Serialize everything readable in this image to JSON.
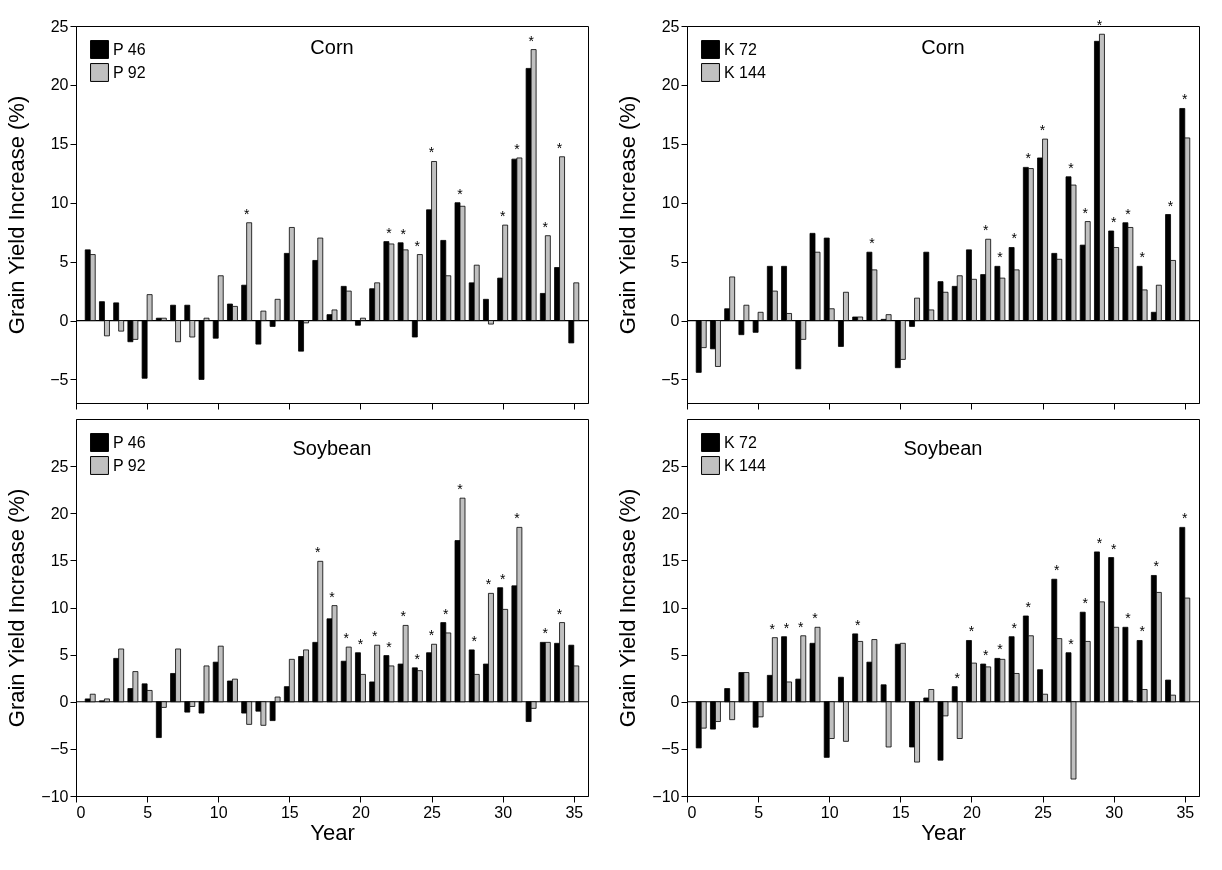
{
  "chart_data": [
    {
      "type": "bar",
      "title": "Corn",
      "ylabel": "Grain Yield Increase (%)",
      "x": [
        1,
        2,
        3,
        4,
        5,
        6,
        7,
        8,
        9,
        10,
        11,
        12,
        13,
        14,
        15,
        16,
        17,
        18,
        19,
        20,
        21,
        22,
        23,
        24,
        25,
        26,
        27,
        28,
        29,
        30,
        31,
        32,
        33,
        34,
        35
      ],
      "xlim": [
        0,
        36
      ],
      "xticks": [
        0,
        5,
        10,
        15,
        20,
        25,
        30,
        35
      ],
      "ylim": [
        -7,
        25
      ],
      "yticks": [
        -5,
        0,
        5,
        10,
        15,
        20,
        25
      ],
      "tick_labels": "y",
      "legend": "top left",
      "series": [
        {
          "name": "P 46",
          "color": "#000000",
          "values": [
            6.0,
            1.6,
            1.5,
            -1.8,
            -4.9,
            0.2,
            1.3,
            1.3,
            -5.0,
            -1.5,
            1.4,
            3.0,
            -2.0,
            -0.5,
            5.7,
            -2.6,
            5.1,
            0.5,
            2.9,
            -0.4,
            2.7,
            6.7,
            6.6,
            -1.4,
            9.4,
            6.8,
            10.0,
            3.2,
            1.8,
            3.6,
            13.7,
            21.4,
            2.3,
            4.5,
            -1.9
          ]
        },
        {
          "name": "P 92",
          "color": "#c0c0c0",
          "values": [
            5.6,
            -1.3,
            -0.9,
            -1.6,
            2.2,
            0.2,
            -1.8,
            -1.4,
            0.2,
            3.8,
            1.2,
            8.3,
            0.8,
            1.8,
            7.9,
            -0.2,
            7.0,
            0.9,
            2.5,
            0.2,
            3.2,
            6.5,
            6.0,
            5.6,
            13.5,
            3.8,
            9.7,
            4.7,
            -0.3,
            8.1,
            13.8,
            23.0,
            7.2,
            13.9,
            3.2
          ]
        }
      ],
      "ref_lines": [
        {
          "axis": "y",
          "value": 0
        }
      ],
      "annotations": [
        {
          "text": "*",
          "x": 12,
          "y": 8.3
        },
        {
          "text": "*",
          "x": 22,
          "y": 6.7
        },
        {
          "text": "*",
          "x": 23,
          "y": 6.6
        },
        {
          "text": "*",
          "x": 24,
          "y": 5.6
        },
        {
          "text": "*",
          "x": 25,
          "y": 13.5
        },
        {
          "text": "*",
          "x": 27,
          "y": 10.0
        },
        {
          "text": "*",
          "x": 30,
          "y": 8.1
        },
        {
          "text": "*",
          "x": 31,
          "y": 13.8
        },
        {
          "text": "*",
          "x": 32,
          "y": 23.0
        },
        {
          "text": "*",
          "x": 33,
          "y": 7.2
        },
        {
          "text": "*",
          "x": 34,
          "y": 13.9
        }
      ]
    },
    {
      "type": "bar",
      "title": "Corn",
      "ylabel": "Grain Yield Increase (%)",
      "x": [
        1,
        2,
        3,
        4,
        5,
        6,
        7,
        8,
        9,
        10,
        11,
        12,
        13,
        14,
        15,
        16,
        17,
        18,
        19,
        20,
        21,
        22,
        23,
        24,
        25,
        26,
        27,
        28,
        29,
        30,
        31,
        32,
        33,
        34,
        35
      ],
      "xlim": [
        0,
        36
      ],
      "xticks": [
        0,
        5,
        10,
        15,
        20,
        25,
        30,
        35
      ],
      "ylim": [
        -7,
        25
      ],
      "yticks": [
        -5,
        0,
        5,
        10,
        15,
        20,
        25
      ],
      "tick_labels": "y",
      "legend": "top left",
      "series": [
        {
          "name": "K 72",
          "color": "#000000",
          "values": [
            -4.4,
            -2.4,
            1.0,
            -1.2,
            -1.0,
            4.6,
            4.6,
            -4.1,
            7.4,
            7.0,
            -2.2,
            0.3,
            5.8,
            0.1,
            -4.0,
            -0.5,
            5.8,
            3.3,
            2.9,
            6.0,
            3.9,
            4.6,
            6.2,
            13.0,
            13.8,
            5.7,
            12.2,
            6.4,
            23.7,
            7.6,
            8.3,
            4.6,
            0.7,
            9.0,
            18.0
          ]
        },
        {
          "name": "K 144",
          "color": "#c0c0c0",
          "values": [
            -2.3,
            -3.9,
            3.7,
            1.3,
            0.7,
            2.5,
            0.6,
            -1.6,
            5.8,
            1.0,
            2.4,
            0.3,
            4.3,
            0.5,
            -3.3,
            1.9,
            0.9,
            2.4,
            3.8,
            3.5,
            6.9,
            3.6,
            4.3,
            12.9,
            15.4,
            5.2,
            11.5,
            8.4,
            24.3,
            6.2,
            7.9,
            2.6,
            3.0,
            5.1,
            15.5
          ]
        }
      ],
      "ref_lines": [
        {
          "axis": "y",
          "value": 0
        }
      ],
      "annotations": [
        {
          "text": "*",
          "x": 13,
          "y": 5.8
        },
        {
          "text": "*",
          "x": 21,
          "y": 6.9
        },
        {
          "text": "*",
          "x": 22,
          "y": 4.6
        },
        {
          "text": "*",
          "x": 23,
          "y": 6.2
        },
        {
          "text": "*",
          "x": 24,
          "y": 13.0
        },
        {
          "text": "*",
          "x": 25,
          "y": 15.4
        },
        {
          "text": "*",
          "x": 27,
          "y": 12.2
        },
        {
          "text": "*",
          "x": 28,
          "y": 8.4
        },
        {
          "text": "*",
          "x": 29,
          "y": 24.3
        },
        {
          "text": "*",
          "x": 30,
          "y": 7.6
        },
        {
          "text": "*",
          "x": 31,
          "y": 8.3
        },
        {
          "text": "*",
          "x": 32,
          "y": 4.6
        },
        {
          "text": "*",
          "x": 34,
          "y": 9.0
        },
        {
          "text": "*",
          "x": 35,
          "y": 18.0
        }
      ]
    },
    {
      "type": "bar",
      "title": "Soybean",
      "xlabel": "Year",
      "ylabel": "Grain Yield Increase (%)",
      "x": [
        1,
        2,
        3,
        4,
        5,
        6,
        7,
        8,
        9,
        10,
        11,
        12,
        13,
        14,
        15,
        16,
        17,
        18,
        19,
        20,
        21,
        22,
        23,
        24,
        25,
        26,
        27,
        28,
        29,
        30,
        31,
        32,
        33,
        34,
        35
      ],
      "xlim": [
        0,
        36
      ],
      "xticks": [
        0,
        5,
        10,
        15,
        20,
        25,
        30,
        35
      ],
      "ylim": [
        -10,
        30
      ],
      "yticks": [
        -10,
        -5,
        0,
        5,
        10,
        15,
        20,
        25
      ],
      "legend": "top left",
      "series": [
        {
          "name": "P 46",
          "color": "#000000",
          "values": [
            0.3,
            0.1,
            4.6,
            1.4,
            1.9,
            -3.8,
            3.0,
            -1.1,
            -1.2,
            4.2,
            2.2,
            -1.2,
            -1.0,
            -2.0,
            1.6,
            4.8,
            6.3,
            8.8,
            4.3,
            5.2,
            2.1,
            4.9,
            4.0,
            3.6,
            5.2,
            8.4,
            17.1,
            5.5,
            4.0,
            12.1,
            12.3,
            -2.1,
            6.3,
            6.2,
            6.0
          ]
        },
        {
          "name": "P 92",
          "color": "#c0c0c0",
          "values": [
            0.8,
            0.3,
            5.6,
            3.2,
            1.2,
            -0.6,
            5.6,
            -0.5,
            3.8,
            5.9,
            2.4,
            -2.4,
            -2.5,
            0.5,
            4.5,
            5.5,
            14.9,
            10.2,
            5.8,
            2.9,
            6.0,
            3.8,
            8.1,
            3.3,
            6.1,
            7.3,
            21.6,
            2.9,
            11.5,
            9.8,
            18.5,
            -0.7,
            6.3,
            8.4,
            3.8
          ]
        }
      ],
      "ref_lines": [
        {
          "axis": "y",
          "value": 0
        }
      ],
      "annotations": [
        {
          "text": "*",
          "x": 17,
          "y": 14.9
        },
        {
          "text": "*",
          "x": 18,
          "y": 10.2
        },
        {
          "text": "*",
          "x": 19,
          "y": 5.8
        },
        {
          "text": "*",
          "x": 20,
          "y": 5.2
        },
        {
          "text": "*",
          "x": 21,
          "y": 6.0
        },
        {
          "text": "*",
          "x": 22,
          "y": 4.9
        },
        {
          "text": "*",
          "x": 23,
          "y": 8.1
        },
        {
          "text": "*",
          "x": 24,
          "y": 3.6
        },
        {
          "text": "*",
          "x": 25,
          "y": 6.1
        },
        {
          "text": "*",
          "x": 26,
          "y": 8.4
        },
        {
          "text": "*",
          "x": 27,
          "y": 21.6
        },
        {
          "text": "*",
          "x": 28,
          "y": 5.5
        },
        {
          "text": "*",
          "x": 29,
          "y": 11.5
        },
        {
          "text": "*",
          "x": 30,
          "y": 12.1
        },
        {
          "text": "*",
          "x": 31,
          "y": 18.5
        },
        {
          "text": "*",
          "x": 33,
          "y": 6.3
        },
        {
          "text": "*",
          "x": 34,
          "y": 8.4
        }
      ]
    },
    {
      "type": "bar",
      "title": "Soybean",
      "xlabel": "Year",
      "ylabel": "Grain Yield Increase (%)",
      "x": [
        1,
        2,
        3,
        4,
        5,
        6,
        7,
        8,
        9,
        10,
        11,
        12,
        13,
        14,
        15,
        16,
        17,
        18,
        19,
        20,
        21,
        22,
        23,
        24,
        25,
        26,
        27,
        28,
        29,
        30,
        31,
        32,
        33,
        34,
        35
      ],
      "xlim": [
        0,
        36
      ],
      "xticks": [
        0,
        5,
        10,
        15,
        20,
        25,
        30,
        35
      ],
      "ylim": [
        -10,
        30
      ],
      "yticks": [
        -10,
        -5,
        0,
        5,
        10,
        15,
        20,
        25
      ],
      "legend": "top left",
      "series": [
        {
          "name": "K 72",
          "color": "#000000",
          "values": [
            -4.9,
            -2.9,
            1.4,
            3.1,
            -2.7,
            2.8,
            6.9,
            2.4,
            6.2,
            -5.9,
            2.6,
            7.2,
            4.2,
            1.8,
            6.1,
            -4.8,
            0.4,
            -6.2,
            1.6,
            6.5,
            4.0,
            4.6,
            6.9,
            9.1,
            3.4,
            13.0,
            5.2,
            9.5,
            15.9,
            15.3,
            7.9,
            6.5,
            13.4,
            2.3,
            18.5
          ]
        },
        {
          "name": "K 144",
          "color": "#c0c0c0",
          "values": [
            -2.8,
            -2.1,
            -1.9,
            3.1,
            -1.6,
            6.8,
            2.1,
            7.0,
            7.9,
            -3.9,
            -4.2,
            6.4,
            6.6,
            -4.8,
            6.2,
            -6.4,
            1.3,
            -1.5,
            -3.9,
            4.1,
            3.7,
            4.5,
            3.0,
            7.0,
            0.8,
            6.7,
            -8.2,
            6.4,
            10.6,
            7.9,
            0.1,
            1.3,
            11.6,
            0.7,
            11.0
          ]
        }
      ],
      "ref_lines": [
        {
          "axis": "y",
          "value": 0
        }
      ],
      "annotations": [
        {
          "text": "*",
          "x": 6,
          "y": 6.8
        },
        {
          "text": "*",
          "x": 7,
          "y": 6.9
        },
        {
          "text": "*",
          "x": 8,
          "y": 7.0
        },
        {
          "text": "*",
          "x": 9,
          "y": 7.9
        },
        {
          "text": "*",
          "x": 12,
          "y": 7.2
        },
        {
          "text": "*",
          "x": 19,
          "y": 1.6
        },
        {
          "text": "*",
          "x": 20,
          "y": 6.5
        },
        {
          "text": "*",
          "x": 21,
          "y": 4.0
        },
        {
          "text": "*",
          "x": 22,
          "y": 4.6
        },
        {
          "text": "*",
          "x": 23,
          "y": 6.9
        },
        {
          "text": "*",
          "x": 24,
          "y": 9.1
        },
        {
          "text": "*",
          "x": 26,
          "y": 13.0
        },
        {
          "text": "*",
          "x": 27,
          "y": 5.2
        },
        {
          "text": "*",
          "x": 28,
          "y": 9.5
        },
        {
          "text": "*",
          "x": 29,
          "y": 15.9
        },
        {
          "text": "*",
          "x": 30,
          "y": 15.3
        },
        {
          "text": "*",
          "x": 31,
          "y": 7.9
        },
        {
          "text": "*",
          "x": 32,
          "y": 6.5
        },
        {
          "text": "*",
          "x": 33,
          "y": 13.4
        },
        {
          "text": "*",
          "x": 35,
          "y": 18.5
        }
      ]
    }
  ]
}
